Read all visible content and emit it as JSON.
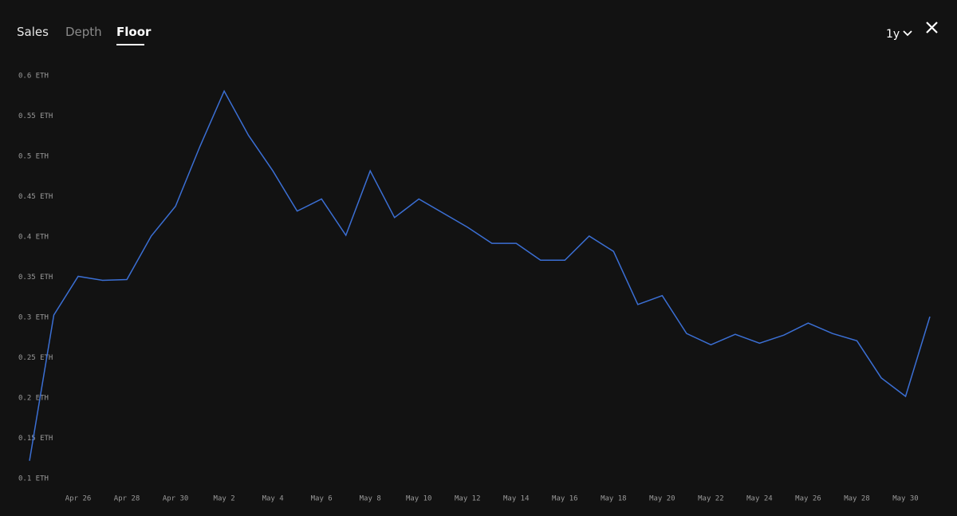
{
  "tabs": [
    "Sales",
    "Depth",
    "Floor"
  ],
  "period": "1y",
  "chart_data": {
    "type": "line",
    "color": "#3b6fd4",
    "x": [
      "Apr 24",
      "Apr 25",
      "Apr 26",
      "Apr 27",
      "Apr 28",
      "Apr 29",
      "Apr 30",
      "May 1",
      "May 2",
      "May 3",
      "May 4",
      "May 5",
      "May 6",
      "May 7",
      "May 8",
      "May 9",
      "May 10",
      "May 12",
      "May 13",
      "May 14",
      "May 15",
      "May 16",
      "May 17",
      "May 18",
      "May 19",
      "May 20",
      "May 21",
      "May 22",
      "May 23",
      "May 24",
      "May 25",
      "May 26",
      "May 27",
      "May 28",
      "May 29",
      "May 30",
      "May 31"
    ],
    "values": [
      0.122,
      0.303,
      0.351,
      0.346,
      0.347,
      0.401,
      0.438,
      0.512,
      0.581,
      0.526,
      0.482,
      0.432,
      0.447,
      0.402,
      0.482,
      0.424,
      0.447,
      0.412,
      0.392,
      0.392,
      0.371,
      0.371,
      0.401,
      0.382,
      0.316,
      0.327,
      0.28,
      0.266,
      0.279,
      0.268,
      0.278,
      0.293,
      0.28,
      0.271,
      0.225,
      0.202,
      0.301
    ],
    "xlim": [
      "Apr 24",
      "May 31"
    ],
    "xticks": [
      "Apr 26",
      "Apr 28",
      "Apr 30",
      "May 2",
      "May 4",
      "May 6",
      "May 8",
      "May 10",
      "May 12",
      "May 14",
      "May 16",
      "May 18",
      "May 20",
      "May 22",
      "May 24",
      "May 26",
      "May 28",
      "May 30"
    ],
    "ylim": [
      0.1,
      0.6
    ],
    "yticks": [
      {
        "value": 0.1,
        "label": "0.1 ETH"
      },
      {
        "value": 0.15,
        "label": "0.15 ETH"
      },
      {
        "value": 0.2,
        "label": "0.2 ETH"
      },
      {
        "value": 0.25,
        "label": "0.25 ETH"
      },
      {
        "value": 0.3,
        "label": "0.3 ETH"
      },
      {
        "value": 0.35,
        "label": "0.35 ETH"
      },
      {
        "value": 0.4,
        "label": "0.4 ETH"
      },
      {
        "value": 0.45,
        "label": "0.45 ETH"
      },
      {
        "value": 0.5,
        "label": "0.5 ETH"
      },
      {
        "value": 0.55,
        "label": "0.55 ETH"
      },
      {
        "value": 0.6,
        "label": "0.6 ETH"
      }
    ],
    "grid": false
  }
}
